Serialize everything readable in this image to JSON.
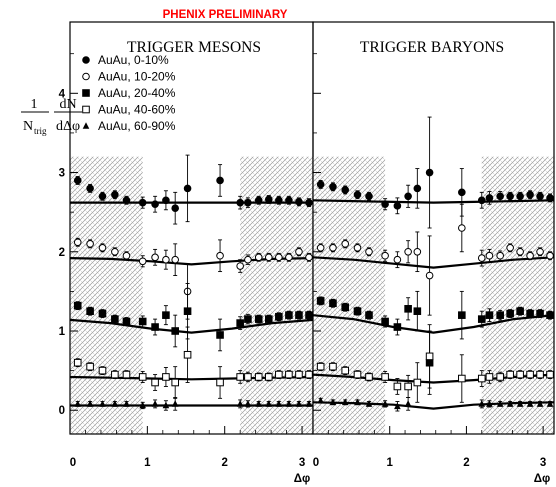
{
  "header": {
    "label": "PHENIX PRELIMINARY",
    "color": "#ff0000"
  },
  "y_axis": {
    "label_numerator": "1",
    "label_ntrig": "N",
    "label_ntrig_sub": "trig",
    "label_dn": "dN",
    "label_ddphi": "dΔφ"
  },
  "x_axis": {
    "label": "Δφ"
  },
  "legend": {
    "entries": [
      {
        "label": "AuAu,   0-10%",
        "marker": "filled-circle"
      },
      {
        "label": "AuAu, 10-20%",
        "marker": "open-circle"
      },
      {
        "label": "AuAu, 20-40%",
        "marker": "filled-square"
      },
      {
        "label": "AuAu, 40-60%",
        "marker": "open-square"
      },
      {
        "label": "AuAu, 60-90%",
        "marker": "filled-triangle"
      }
    ]
  },
  "chart_data": [
    {
      "type": "scatter",
      "title": "TRIGGER MESONS",
      "xlim": [
        0,
        3.1416
      ],
      "ylim": [
        -0.3,
        4.9
      ],
      "x_ticks": [
        0,
        1,
        2,
        3
      ],
      "y_ticks": [
        0,
        1,
        2,
        3,
        4
      ],
      "shaded_regions": [
        [
          0,
          0.94
        ],
        [
          2.2,
          3.1416
        ]
      ],
      "grid": false,
      "series": [
        {
          "name": "AuAu,   0-10%",
          "marker": "filled-circle",
          "x": [
            0.1,
            0.26,
            0.42,
            0.58,
            0.73,
            0.94,
            1.1,
            1.24,
            1.36,
            1.52,
            1.94,
            2.2,
            2.3,
            2.44,
            2.57,
            2.7,
            2.83,
            2.96,
            3.09
          ],
          "y": [
            2.9,
            2.8,
            2.7,
            2.72,
            2.65,
            2.62,
            2.6,
            2.65,
            2.55,
            2.8,
            2.9,
            2.62,
            2.62,
            2.65,
            2.66,
            2.65,
            2.65,
            2.63,
            2.62
          ],
          "err": [
            0.05,
            0.05,
            0.05,
            0.05,
            0.05,
            0.07,
            0.1,
            0.12,
            0.2,
            0.42,
            0.2,
            0.08,
            0.06,
            0.05,
            0.05,
            0.05,
            0.05,
            0.05,
            0.05
          ],
          "fit": [
            2.62,
            2.62,
            2.62,
            2.62,
            2.62,
            2.62,
            2.62
          ]
        },
        {
          "name": "AuAu, 10-20%",
          "marker": "open-circle",
          "x": [
            0.1,
            0.26,
            0.42,
            0.58,
            0.73,
            0.94,
            1.1,
            1.24,
            1.36,
            1.52,
            1.94,
            2.2,
            2.3,
            2.44,
            2.57,
            2.7,
            2.83,
            2.96,
            3.09
          ],
          "y": [
            2.12,
            2.1,
            2.05,
            2.0,
            1.95,
            1.88,
            1.93,
            1.9,
            1.9,
            1.5,
            1.95,
            1.82,
            1.9,
            1.93,
            1.93,
            1.93,
            1.93,
            2.0,
            1.93
          ],
          "err": [
            0.05,
            0.05,
            0.05,
            0.05,
            0.05,
            0.07,
            0.1,
            0.12,
            0.2,
            0.35,
            0.2,
            0.08,
            0.06,
            0.05,
            0.05,
            0.05,
            0.05,
            0.05,
            0.05
          ],
          "fit": [
            1.92,
            1.91,
            1.88,
            1.84,
            1.88,
            1.91,
            1.92
          ]
        },
        {
          "name": "AuAu, 20-40%",
          "marker": "filled-square",
          "x": [
            0.1,
            0.26,
            0.42,
            0.58,
            0.73,
            0.94,
            1.1,
            1.24,
            1.36,
            1.52,
            1.94,
            2.2,
            2.3,
            2.44,
            2.57,
            2.7,
            2.83,
            2.96,
            3.09
          ],
          "y": [
            1.32,
            1.25,
            1.22,
            1.15,
            1.12,
            1.12,
            1.05,
            1.2,
            1.0,
            1.25,
            0.95,
            1.1,
            1.15,
            1.15,
            1.15,
            1.18,
            1.2,
            1.2,
            1.2
          ],
          "err": [
            0.05,
            0.05,
            0.05,
            0.05,
            0.05,
            0.07,
            0.1,
            0.12,
            0.2,
            0.35,
            0.2,
            0.08,
            0.06,
            0.05,
            0.05,
            0.05,
            0.05,
            0.05,
            0.05
          ],
          "fit": [
            1.14,
            1.1,
            1.03,
            0.98,
            1.03,
            1.1,
            1.14
          ]
        },
        {
          "name": "AuAu, 40-60%",
          "marker": "open-square",
          "x": [
            0.1,
            0.26,
            0.42,
            0.58,
            0.73,
            0.94,
            1.1,
            1.24,
            1.36,
            1.52,
            1.94,
            2.2,
            2.3,
            2.44,
            2.57,
            2.7,
            2.83,
            2.96,
            3.09
          ],
          "y": [
            0.6,
            0.55,
            0.5,
            0.45,
            0.45,
            0.42,
            0.35,
            0.42,
            0.35,
            0.7,
            0.35,
            0.42,
            0.42,
            0.42,
            0.42,
            0.45,
            0.45,
            0.45,
            0.45
          ],
          "err": [
            0.05,
            0.05,
            0.05,
            0.05,
            0.05,
            0.07,
            0.1,
            0.12,
            0.2,
            0.35,
            0.2,
            0.08,
            0.06,
            0.05,
            0.05,
            0.05,
            0.05,
            0.05,
            0.05
          ],
          "fit": [
            0.42,
            0.41,
            0.4,
            0.39,
            0.4,
            0.41,
            0.42
          ]
        },
        {
          "name": "AuAu, 60-90%",
          "marker": "filled-triangle",
          "x": [
            0.1,
            0.26,
            0.42,
            0.58,
            0.73,
            0.94,
            1.1,
            1.24,
            1.36,
            2.2,
            2.3,
            2.44,
            2.57,
            2.7,
            2.83,
            2.96,
            3.09
          ],
          "y": [
            0.08,
            0.08,
            0.08,
            0.08,
            0.08,
            0.06,
            0.08,
            0.06,
            0.08,
            0.08,
            0.08,
            0.08,
            0.08,
            0.08,
            0.08,
            0.08,
            0.08
          ],
          "err": [
            0.03,
            0.03,
            0.03,
            0.03,
            0.03,
            0.04,
            0.05,
            0.06,
            0.08,
            0.05,
            0.04,
            0.03,
            0.03,
            0.03,
            0.03,
            0.03,
            0.03
          ],
          "fit": [
            0.06,
            0.06,
            0.06,
            0.06,
            0.06,
            0.06,
            0.06
          ]
        }
      ]
    },
    {
      "type": "scatter",
      "title": "TRIGGER BARYONS",
      "xlim": [
        0,
        3.1416
      ],
      "ylim": [
        -0.3,
        4.9
      ],
      "x_ticks": [
        0,
        1,
        2,
        3
      ],
      "y_ticks": [
        0,
        1,
        2,
        3,
        4
      ],
      "shaded_regions": [
        [
          0,
          0.94
        ],
        [
          2.2,
          3.1416
        ]
      ],
      "grid": false,
      "series": [
        {
          "name": "AuAu,   0-10%",
          "marker": "filled-circle",
          "x": [
            0.1,
            0.26,
            0.42,
            0.58,
            0.73,
            0.94,
            1.1,
            1.24,
            1.36,
            1.52,
            1.94,
            2.2,
            2.3,
            2.44,
            2.57,
            2.7,
            2.83,
            2.96,
            3.09
          ],
          "y": [
            2.85,
            2.82,
            2.78,
            2.72,
            2.7,
            2.6,
            2.58,
            2.7,
            2.8,
            3.0,
            2.75,
            2.65,
            2.68,
            2.7,
            2.7,
            2.7,
            2.72,
            2.7,
            2.68
          ],
          "err": [
            0.05,
            0.05,
            0.05,
            0.05,
            0.05,
            0.07,
            0.1,
            0.14,
            0.25,
            0.7,
            0.3,
            0.1,
            0.08,
            0.06,
            0.05,
            0.05,
            0.05,
            0.05,
            0.05
          ],
          "fit": [
            2.65,
            2.64,
            2.63,
            2.62,
            2.63,
            2.64,
            2.65
          ]
        },
        {
          "name": "AuAu, 10-20%",
          "marker": "open-circle",
          "x": [
            0.1,
            0.26,
            0.42,
            0.58,
            0.73,
            0.94,
            1.1,
            1.24,
            1.36,
            1.52,
            1.94,
            2.2,
            2.3,
            2.44,
            2.57,
            2.7,
            2.83,
            2.96,
            3.09
          ],
          "y": [
            2.05,
            2.05,
            2.1,
            2.05,
            2.0,
            1.95,
            1.9,
            2.0,
            2.0,
            1.7,
            2.3,
            1.92,
            1.95,
            1.95,
            2.05,
            2.0,
            1.95,
            2.0,
            1.95
          ],
          "err": [
            0.05,
            0.05,
            0.05,
            0.05,
            0.05,
            0.07,
            0.1,
            0.14,
            0.25,
            0.5,
            0.3,
            0.1,
            0.08,
            0.06,
            0.05,
            0.05,
            0.05,
            0.05,
            0.05
          ],
          "fit": [
            1.93,
            1.9,
            1.85,
            1.8,
            1.85,
            1.9,
            1.93
          ]
        },
        {
          "name": "AuAu, 20-40%",
          "marker": "filled-square",
          "x": [
            0.1,
            0.26,
            0.42,
            0.58,
            0.73,
            0.94,
            1.1,
            1.24,
            1.36,
            1.52,
            1.94,
            2.2,
            2.3,
            2.44,
            2.57,
            2.7,
            2.83,
            2.96,
            3.09
          ],
          "y": [
            1.38,
            1.35,
            1.3,
            1.25,
            1.2,
            1.12,
            1.05,
            1.28,
            1.25,
            0.6,
            1.2,
            1.15,
            1.2,
            1.2,
            1.22,
            1.25,
            1.22,
            1.22,
            1.2
          ],
          "err": [
            0.05,
            0.05,
            0.05,
            0.05,
            0.05,
            0.07,
            0.1,
            0.14,
            0.25,
            0.4,
            0.3,
            0.1,
            0.08,
            0.06,
            0.05,
            0.05,
            0.05,
            0.05,
            0.05
          ],
          "fit": [
            1.2,
            1.15,
            1.05,
            0.98,
            1.05,
            1.15,
            1.2
          ]
        },
        {
          "name": "AuAu, 40-60%",
          "marker": "open-square",
          "x": [
            0.1,
            0.26,
            0.42,
            0.58,
            0.73,
            0.94,
            1.1,
            1.24,
            1.36,
            1.52,
            1.94,
            2.2,
            2.3,
            2.44,
            2.57,
            2.7,
            2.83,
            2.96,
            3.09
          ],
          "y": [
            0.55,
            0.55,
            0.5,
            0.45,
            0.42,
            0.42,
            0.3,
            0.3,
            0.35,
            0.68,
            0.4,
            0.4,
            0.42,
            0.42,
            0.45,
            0.45,
            0.45,
            0.45,
            0.45
          ],
          "err": [
            0.05,
            0.05,
            0.05,
            0.05,
            0.05,
            0.07,
            0.1,
            0.14,
            0.25,
            0.4,
            0.3,
            0.1,
            0.08,
            0.06,
            0.05,
            0.05,
            0.05,
            0.05,
            0.05
          ],
          "fit": [
            0.45,
            0.42,
            0.38,
            0.35,
            0.38,
            0.42,
            0.45
          ]
        },
        {
          "name": "AuAu, 60-90%",
          "marker": "filled-triangle",
          "x": [
            0.1,
            0.26,
            0.42,
            0.58,
            0.73,
            0.94,
            1.1,
            1.24,
            2.2,
            2.3,
            2.44,
            2.57,
            2.7,
            2.83,
            2.96,
            3.09
          ],
          "y": [
            0.12,
            0.1,
            0.1,
            0.1,
            0.08,
            0.08,
            0.05,
            0.08,
            0.08,
            0.08,
            0.08,
            0.08,
            0.08,
            0.08,
            0.08,
            0.08
          ],
          "err": [
            0.03,
            0.03,
            0.03,
            0.03,
            0.03,
            0.04,
            0.06,
            0.08,
            0.05,
            0.04,
            0.03,
            0.03,
            0.03,
            0.03,
            0.03,
            0.03
          ],
          "fit": [
            0.1,
            0.09,
            0.07,
            0.02,
            0.07,
            0.09,
            0.1
          ]
        }
      ]
    }
  ]
}
